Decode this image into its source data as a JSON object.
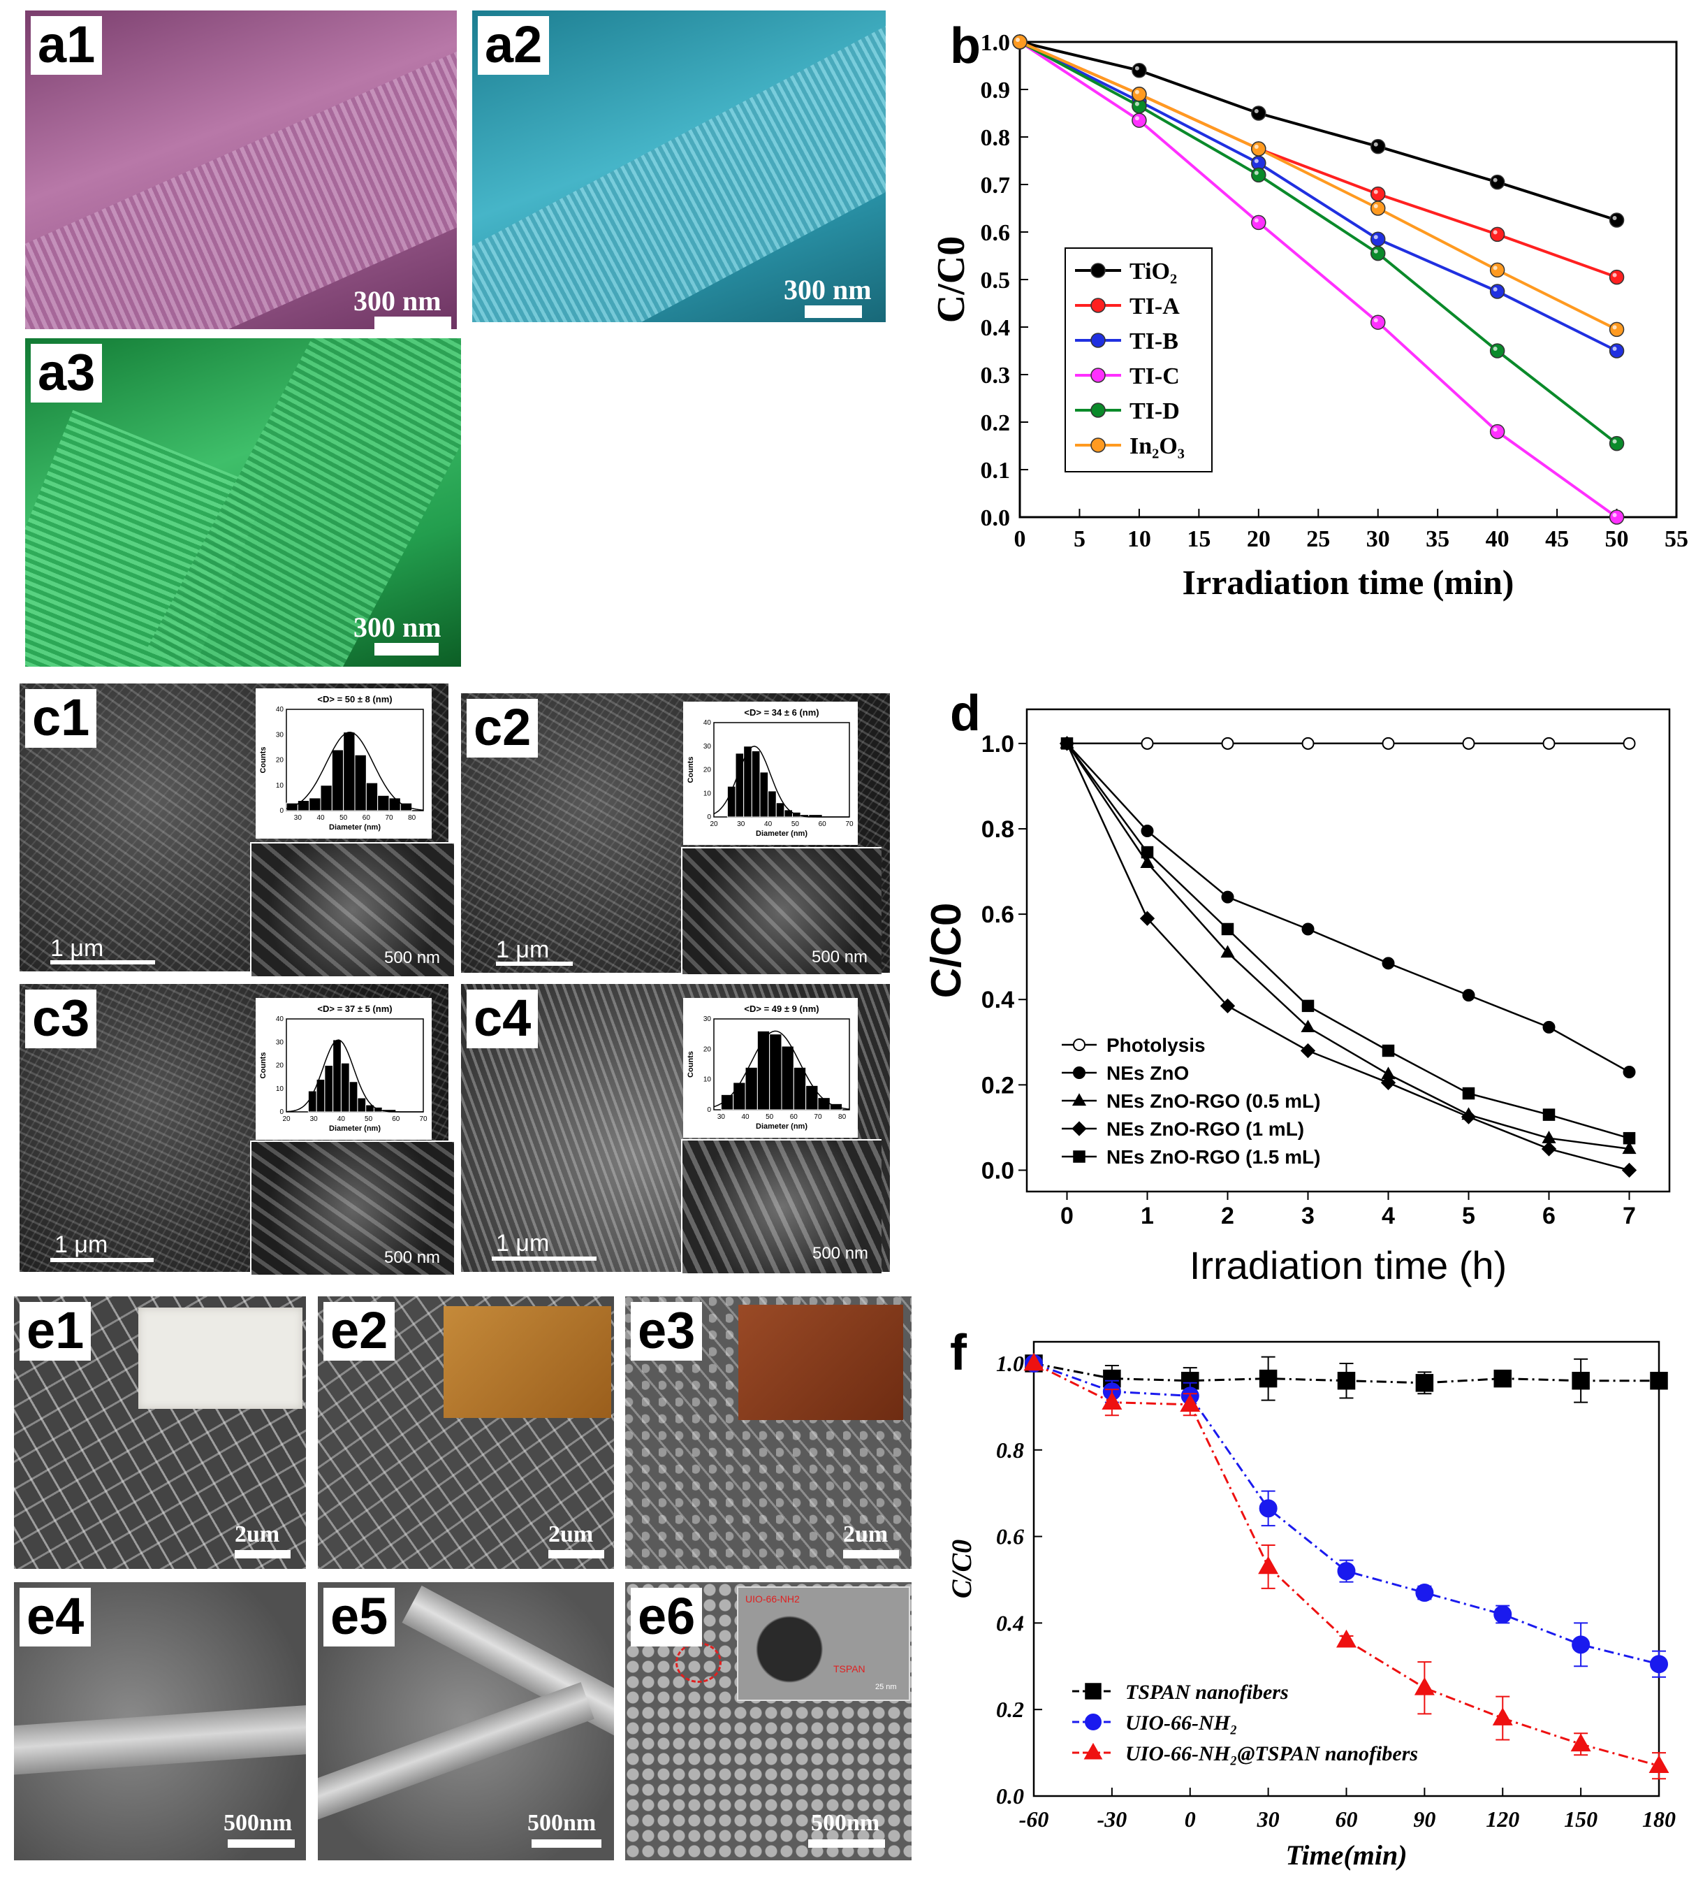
{
  "panels": {
    "a1": {
      "label": "a1",
      "scale": "300 nm",
      "color": "#9c5a8e"
    },
    "a2": {
      "label": "a2",
      "scale": "300 nm",
      "color": "#2b9db1"
    },
    "a3": {
      "label": "a3",
      "scale": "300 nm",
      "color": "#2a9e52"
    },
    "c1": {
      "label": "c1",
      "scale_left": "1 μm",
      "scale_right": "500 nm"
    },
    "c2": {
      "label": "c2",
      "scale_left": "1 μm",
      "scale_right": "500 nm"
    },
    "c3": {
      "label": "c3",
      "scale_left": "1 μm",
      "scale_right": "500 nm"
    },
    "c4": {
      "label": "c4",
      "scale_left": "1 μm",
      "scale_right": "500 nm"
    },
    "e1": {
      "label": "e1",
      "scale": "2um"
    },
    "e2": {
      "label": "e2",
      "scale": "2um"
    },
    "e3": {
      "label": "e3",
      "scale": "2um"
    },
    "e4": {
      "label": "e4",
      "scale": "500nm"
    },
    "e5": {
      "label": "e5",
      "scale": "500nm"
    },
    "e6": {
      "label": "e6",
      "scale": "500nm",
      "inset_labels": [
        "UIO-66-NH2",
        "TSPAN",
        "25 nm"
      ]
    }
  },
  "histograms": [
    {
      "id": "c1",
      "title": "<D> = 50 ± 8 (nm)",
      "xlabel": "Diameter (nm)",
      "ylabel": "Counts",
      "xticks": [
        30,
        40,
        50,
        60,
        70,
        80
      ],
      "xlim": [
        25,
        85
      ],
      "yticks": [
        0,
        10,
        20,
        30,
        40
      ],
      "ylim": [
        0,
        40
      ],
      "bins": [
        [
          25,
          30,
          3
        ],
        [
          30,
          35,
          4
        ],
        [
          35,
          40,
          5
        ],
        [
          40,
          45,
          10
        ],
        [
          45,
          50,
          24
        ],
        [
          50,
          55,
          31
        ],
        [
          55,
          60,
          22
        ],
        [
          60,
          65,
          11
        ],
        [
          65,
          70,
          6
        ],
        [
          70,
          75,
          5
        ],
        [
          75,
          80,
          3
        ]
      ]
    },
    {
      "id": "c2",
      "title": "<D> = 34 ± 6 (nm)",
      "xlabel": "Diameter (nm)",
      "ylabel": "Counts",
      "xticks": [
        20,
        30,
        40,
        50,
        60,
        70
      ],
      "xlim": [
        20,
        70
      ],
      "yticks": [
        0,
        10,
        20,
        30,
        40
      ],
      "ylim": [
        0,
        40
      ],
      "bins": [
        [
          25,
          28,
          13
        ],
        [
          28,
          31,
          27
        ],
        [
          31,
          34,
          30
        ],
        [
          34,
          37,
          28
        ],
        [
          37,
          40,
          19
        ],
        [
          40,
          43,
          11
        ],
        [
          43,
          46,
          6
        ],
        [
          46,
          49,
          3
        ],
        [
          49,
          52,
          2
        ],
        [
          52,
          55,
          1
        ],
        [
          55,
          60,
          1
        ]
      ]
    },
    {
      "id": "c3",
      "title": "<D> = 37 ± 5 (nm)",
      "xlabel": "Diameter (nm)",
      "ylabel": "Counts",
      "xticks": [
        20,
        30,
        40,
        50,
        60,
        70
      ],
      "xlim": [
        20,
        70
      ],
      "yticks": [
        0,
        10,
        20,
        30,
        40
      ],
      "ylim": [
        0,
        40
      ],
      "bins": [
        [
          28,
          31,
          9
        ],
        [
          31,
          34,
          14
        ],
        [
          34,
          37,
          20
        ],
        [
          37,
          40,
          31
        ],
        [
          40,
          43,
          21
        ],
        [
          43,
          46,
          13
        ],
        [
          46,
          49,
          6
        ],
        [
          49,
          52,
          3
        ],
        [
          52,
          55,
          2
        ],
        [
          55,
          60,
          1
        ]
      ]
    },
    {
      "id": "c4",
      "title": "<D> = 49 ± 9 (nm)",
      "xlabel": "Diameter (nm)",
      "ylabel": "Counts",
      "xticks": [
        30,
        40,
        50,
        60,
        70,
        80
      ],
      "xlim": [
        27,
        83
      ],
      "yticks": [
        0,
        10,
        20,
        30
      ],
      "ylim": [
        0,
        30
      ],
      "bins": [
        [
          30,
          35,
          5
        ],
        [
          35,
          40,
          9
        ],
        [
          40,
          45,
          14
        ],
        [
          45,
          50,
          26
        ],
        [
          50,
          55,
          25
        ],
        [
          55,
          60,
          21
        ],
        [
          60,
          65,
          14
        ],
        [
          65,
          70,
          8
        ],
        [
          70,
          75,
          4
        ],
        [
          75,
          80,
          2
        ]
      ]
    }
  ],
  "chart_data": [
    {
      "id": "b",
      "label": "b",
      "type": "line",
      "xlabel": "Irradiation time (min)",
      "ylabel": "C/C0",
      "xlim": [
        0,
        55
      ],
      "ylim": [
        0,
        1.0
      ],
      "xticks": [
        0,
        5,
        10,
        15,
        20,
        25,
        30,
        35,
        40,
        45,
        50,
        55
      ],
      "yticks": [
        0.0,
        0.1,
        0.2,
        0.3,
        0.4,
        0.5,
        0.6,
        0.7,
        0.8,
        0.9,
        1.0
      ],
      "x": [
        0,
        10,
        20,
        30,
        40,
        50
      ],
      "legend": "center-left",
      "series": [
        {
          "name": "TiO₂",
          "color": "#000000",
          "values": [
            1.0,
            0.94,
            0.85,
            0.78,
            0.705,
            0.625
          ]
        },
        {
          "name": "TI-A",
          "color": "#ff2020",
          "values": [
            1.0,
            0.89,
            0.775,
            0.68,
            0.595,
            0.505
          ]
        },
        {
          "name": "TI-B",
          "color": "#2030e0",
          "values": [
            1.0,
            0.875,
            0.745,
            0.585,
            0.475,
            0.35
          ]
        },
        {
          "name": "TI-C",
          "color": "#ff30ff",
          "values": [
            1.0,
            0.835,
            0.62,
            0.41,
            0.18,
            0.0
          ]
        },
        {
          "name": "TI-D",
          "color": "#0a8a2a",
          "values": [
            1.0,
            0.865,
            0.72,
            0.555,
            0.35,
            0.155
          ]
        },
        {
          "name": "In₂O₃",
          "color": "#ff9a20",
          "values": [
            1.0,
            0.89,
            0.775,
            0.65,
            0.52,
            0.395
          ]
        }
      ]
    },
    {
      "id": "d",
      "label": "d",
      "type": "line",
      "xlabel": "Irradiation time (h)",
      "ylabel": "C/C0",
      "xlim": [
        -0.5,
        7.5
      ],
      "ylim": [
        -0.05,
        1.08
      ],
      "xticks": [
        0,
        1,
        2,
        3,
        4,
        5,
        6,
        7
      ],
      "yticks": [
        0.0,
        0.2,
        0.4,
        0.6,
        0.8,
        1.0
      ],
      "x": [
        0,
        1,
        2,
        3,
        4,
        5,
        6,
        7
      ],
      "legend": "bottom-left",
      "series": [
        {
          "name": "Photolysis",
          "marker": "circle-open",
          "values": [
            1.0,
            1.0,
            1.0,
            1.0,
            1.0,
            1.0,
            1.0,
            1.0
          ]
        },
        {
          "name": "NEs ZnO",
          "marker": "circle",
          "values": [
            1.0,
            0.795,
            0.64,
            0.565,
            0.485,
            0.41,
            0.335,
            0.23
          ]
        },
        {
          "name": "NEs ZnO-RGO (0.5 mL)",
          "marker": "triangle",
          "values": [
            1.0,
            0.72,
            0.51,
            0.335,
            0.225,
            0.13,
            0.075,
            0.05
          ]
        },
        {
          "name": "NEs ZnO-RGO (1 mL)",
          "marker": "diamond",
          "values": [
            1.0,
            0.59,
            0.385,
            0.28,
            0.205,
            0.125,
            0.05,
            0.0
          ]
        },
        {
          "name": "NEs ZnO-RGO (1.5 mL)",
          "marker": "square",
          "values": [
            1.0,
            0.745,
            0.565,
            0.385,
            0.28,
            0.18,
            0.13,
            0.075
          ]
        }
      ]
    },
    {
      "id": "f",
      "label": "f",
      "type": "line",
      "xlabel": "Time(min)",
      "ylabel": "C/C0",
      "xlim": [
        -60,
        180
      ],
      "ylim": [
        0.0,
        1.05
      ],
      "xticks": [
        -60,
        -30,
        0,
        30,
        60,
        90,
        120,
        150,
        180
      ],
      "yticks": [
        0.0,
        0.2,
        0.4,
        0.6,
        0.8,
        1.0
      ],
      "x": [
        -60,
        -30,
        0,
        30,
        60,
        90,
        120,
        150,
        180
      ],
      "legend": "bottom-left",
      "series": [
        {
          "name": "TSPAN nanofibers",
          "color": "#000000",
          "marker": "square",
          "values": [
            1.0,
            0.965,
            0.96,
            0.965,
            0.96,
            0.955,
            0.965,
            0.96,
            0.96
          ],
          "errors": [
            0.0,
            0.03,
            0.03,
            0.05,
            0.04,
            0.025,
            0.015,
            0.05,
            0.015
          ]
        },
        {
          "name": "UIO-66-NH₂",
          "color": "#1a1aee",
          "marker": "circle",
          "values": [
            1.0,
            0.935,
            0.925,
            0.665,
            0.52,
            0.47,
            0.42,
            0.35,
            0.305
          ],
          "errors": [
            0.0,
            0.025,
            0.03,
            0.04,
            0.025,
            0.015,
            0.02,
            0.05,
            0.03
          ]
        },
        {
          "name": "UIO-66-NH₂@TSPAN nanofibers",
          "color": "#ee1111",
          "marker": "triangle",
          "values": [
            1.0,
            0.91,
            0.905,
            0.53,
            0.36,
            0.25,
            0.18,
            0.12,
            0.07
          ],
          "errors": [
            0.0,
            0.03,
            0.025,
            0.05,
            0.01,
            0.06,
            0.05,
            0.025,
            0.03
          ]
        }
      ]
    }
  ]
}
